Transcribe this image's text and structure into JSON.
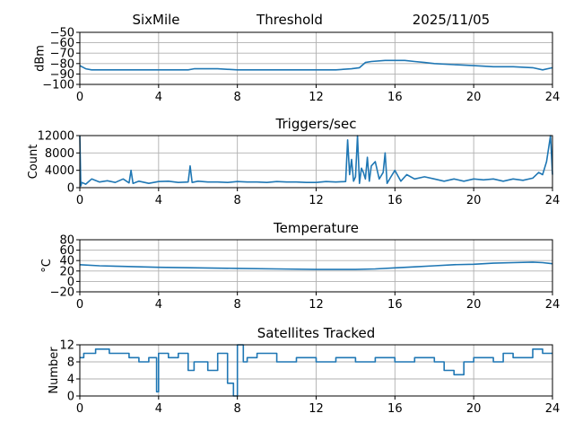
{
  "header": {
    "site": "SixMile",
    "mode": "Threshold",
    "date": "2025/11/05"
  },
  "colors": {
    "series": "#1f77b4"
  },
  "chart_data": [
    {
      "type": "line",
      "title": "",
      "ylabel": "dBm",
      "xlim": [
        0,
        24
      ],
      "ylim": [
        -100,
        -50
      ],
      "xticks": [
        0,
        4,
        8,
        12,
        16,
        20,
        24
      ],
      "yticks": [
        -100,
        -90,
        -80,
        -70,
        -60,
        -50
      ],
      "grid": true,
      "x": [
        0,
        0.3,
        0.6,
        1,
        2,
        4,
        5.5,
        5.8,
        6,
        7,
        8,
        9,
        10,
        11,
        12,
        13,
        13.8,
        14.2,
        14.5,
        14.8,
        15.5,
        16,
        16.5,
        17,
        17.5,
        18,
        19,
        20,
        21,
        22,
        23,
        23.5,
        24
      ],
      "y": [
        -82,
        -85,
        -86,
        -86,
        -86,
        -86,
        -86,
        -85,
        -85,
        -85,
        -86,
        -86,
        -86,
        -86,
        -86,
        -86,
        -85,
        -84,
        -79,
        -78,
        -77,
        -77,
        -77,
        -78,
        -79,
        -80,
        -81,
        -82,
        -83,
        -83,
        -84,
        -86,
        -84
      ]
    },
    {
      "type": "line",
      "title": "Triggers/sec",
      "ylabel": "Count",
      "xlim": [
        0,
        24
      ],
      "ylim": [
        0,
        12000
      ],
      "xticks": [
        0,
        4,
        8,
        12,
        16,
        20,
        24
      ],
      "yticks": [
        0,
        4000,
        8000,
        12000
      ],
      "grid": true,
      "x": [
        0,
        0.05,
        0.1,
        0.3,
        0.6,
        1.0,
        1.4,
        1.8,
        2.2,
        2.5,
        2.6,
        2.7,
        3.0,
        3.5,
        4.0,
        4.5,
        5.0,
        5.5,
        5.6,
        5.7,
        6.0,
        6.5,
        7.0,
        7.5,
        8.0,
        8.5,
        9.0,
        9.5,
        10.0,
        10.5,
        11.0,
        11.5,
        12.0,
        12.5,
        13.0,
        13.5,
        13.6,
        13.7,
        13.8,
        13.9,
        14.0,
        14.1,
        14.2,
        14.3,
        14.4,
        14.5,
        14.6,
        14.7,
        14.8,
        15.0,
        15.2,
        15.4,
        15.5,
        15.6,
        15.8,
        16.0,
        16.3,
        16.6,
        17.0,
        17.5,
        18.0,
        18.5,
        19.0,
        19.5,
        20.0,
        20.5,
        21.0,
        21.5,
        22.0,
        22.5,
        23.0,
        23.3,
        23.5,
        23.7,
        23.8,
        23.9,
        24.0
      ],
      "y": [
        12000,
        400,
        1200,
        800,
        2000,
        1300,
        1600,
        1200,
        2000,
        1100,
        4000,
        1000,
        1500,
        1000,
        1400,
        1500,
        1200,
        1300,
        5000,
        1200,
        1500,
        1300,
        1300,
        1200,
        1400,
        1300,
        1300,
        1200,
        1400,
        1300,
        1300,
        1200,
        1200,
        1400,
        1300,
        1400,
        11000,
        3000,
        6500,
        1500,
        2500,
        12000,
        1000,
        4500,
        3500,
        2000,
        7000,
        1500,
        5000,
        6000,
        2000,
        3500,
        8000,
        1000,
        2500,
        4000,
        1500,
        3000,
        2000,
        2500,
        2000,
        1500,
        2000,
        1500,
        2000,
        1800,
        2000,
        1500,
        2000,
        1700,
        2200,
        3500,
        3000,
        6000,
        9000,
        12000,
        3000
      ]
    },
    {
      "type": "line",
      "title": "Temperature",
      "ylabel": "°C",
      "xlim": [
        0,
        24
      ],
      "ylim": [
        -20,
        80
      ],
      "xticks": [
        0,
        4,
        8,
        12,
        16,
        20,
        24
      ],
      "yticks": [
        -20,
        0,
        20,
        40,
        60,
        80
      ],
      "grid": true,
      "x": [
        0,
        1,
        2,
        4,
        6,
        8,
        10,
        12,
        14,
        15,
        16,
        17,
        18,
        19,
        20,
        21,
        22,
        23,
        23.5,
        24
      ],
      "y": [
        32,
        30,
        29,
        27,
        26,
        25,
        24,
        23,
        23,
        24,
        26,
        28,
        30,
        32,
        33,
        35,
        36,
        37,
        36,
        34
      ]
    },
    {
      "type": "line",
      "title": "Satellites Tracked",
      "ylabel": "Number",
      "xlim": [
        0,
        24
      ],
      "ylim": [
        0,
        12
      ],
      "xticks": [
        0,
        4,
        8,
        12,
        16,
        20,
        24
      ],
      "yticks": [
        0,
        4,
        8,
        12
      ],
      "grid": true,
      "x": [
        0,
        0.2,
        0.2,
        0.8,
        0.8,
        1.5,
        1.5,
        2.5,
        2.5,
        3.0,
        3.0,
        3.5,
        3.5,
        3.9,
        3.9,
        4.0,
        4.0,
        4.5,
        4.5,
        5.0,
        5.0,
        5.5,
        5.5,
        5.8,
        5.8,
        6.5,
        6.5,
        7.0,
        7.0,
        7.5,
        7.5,
        7.8,
        7.8,
        8.0,
        8.0,
        8.3,
        8.3,
        8.5,
        8.5,
        9.0,
        9.0,
        10.0,
        10.0,
        11.0,
        11.0,
        12.0,
        12.0,
        13.0,
        13.0,
        14.0,
        14.0,
        15.0,
        15.0,
        16.0,
        16.0,
        17.0,
        17.0,
        18.0,
        18.0,
        18.5,
        18.5,
        19.0,
        19.0,
        19.5,
        19.5,
        20.0,
        20.0,
        21.0,
        21.0,
        21.5,
        21.5,
        22.0,
        22.0,
        23.0,
        23.0,
        23.5,
        23.5,
        24.0
      ],
      "y": [
        9,
        9,
        10,
        10,
        11,
        11,
        10,
        10,
        9,
        9,
        8,
        8,
        9,
        9,
        1,
        1,
        10,
        10,
        9,
        9,
        10,
        10,
        6,
        6,
        8,
        8,
        6,
        6,
        10,
        10,
        3,
        3,
        0,
        0,
        12,
        12,
        8,
        8,
        9,
        9,
        10,
        10,
        8,
        8,
        9,
        9,
        8,
        8,
        9,
        9,
        8,
        8,
        9,
        9,
        8,
        8,
        9,
        9,
        8,
        8,
        6,
        6,
        5,
        5,
        8,
        8,
        9,
        9,
        8,
        8,
        10,
        10,
        9,
        9,
        11,
        11,
        10,
        10
      ]
    }
  ]
}
